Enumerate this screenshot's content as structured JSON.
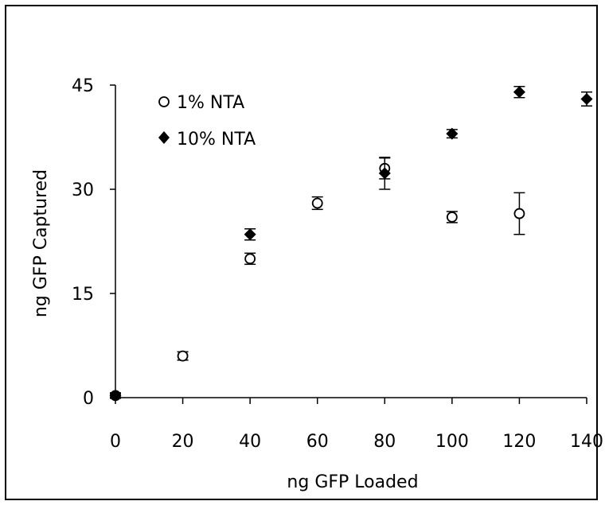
{
  "chart_data": {
    "type": "scatter",
    "title": "",
    "xlabel": "ng GFP Loaded",
    "ylabel": "ng GFP Captured",
    "xlim": [
      0,
      140
    ],
    "ylim": [
      0,
      45
    ],
    "x_ticks": [
      "0",
      "20",
      "40",
      "60",
      "80",
      "100",
      "120",
      "140"
    ],
    "y_ticks": [
      "0",
      "15",
      "30",
      "45"
    ],
    "legend_position": "top-left",
    "grid": false,
    "series": [
      {
        "name": "1% NTA",
        "marker": "open-circle",
        "points": [
          {
            "x": 0,
            "y": 0.3,
            "err": 0.4
          },
          {
            "x": 20,
            "y": 6.0,
            "err": 0.6
          },
          {
            "x": 40,
            "y": 20.0,
            "err": 0.8
          },
          {
            "x": 60,
            "y": 28.0,
            "err": 0.9
          },
          {
            "x": 80,
            "y": 33.0,
            "err": 1.5
          },
          {
            "x": 100,
            "y": 26.0,
            "err": 0.8
          },
          {
            "x": 120,
            "y": 26.5,
            "err": 3.0
          }
        ]
      },
      {
        "name": "10% NTA",
        "marker": "filled-diamond",
        "points": [
          {
            "x": 0,
            "y": 0.3,
            "err": 0.3
          },
          {
            "x": 40,
            "y": 23.5,
            "err": 0.8
          },
          {
            "x": 80,
            "y": 32.3,
            "err": 2.3
          },
          {
            "x": 100,
            "y": 38.0,
            "err": 0.6
          },
          {
            "x": 120,
            "y": 44.0,
            "err": 0.8
          },
          {
            "x": 140,
            "y": 43.0,
            "err": 1.0
          }
        ]
      }
    ]
  }
}
